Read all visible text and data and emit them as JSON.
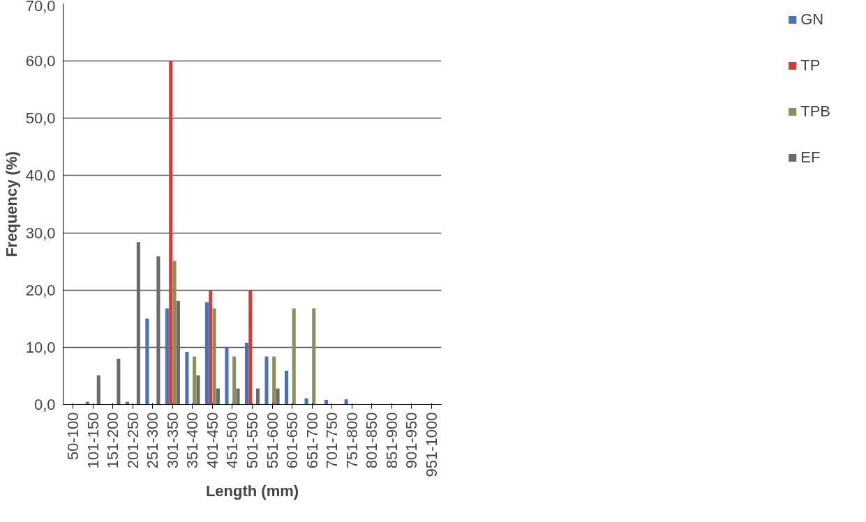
{
  "chart_data": {
    "type": "bar",
    "xlabel": "Length (mm)",
    "ylabel": "Frequency (%)",
    "categories": [
      "50-100",
      "101-150",
      "151-200",
      "201-250",
      "251-300",
      "301-350",
      "351-400",
      "401-450",
      "451-500",
      "501-550",
      "551-600",
      "601-650",
      "651-700",
      "701-750",
      "751-800",
      "801-850",
      "851-900",
      "901-950",
      "951-1000"
    ],
    "series": [
      {
        "name": "GN",
        "color": "#4a72b8",
        "values": [
          0,
          0.5,
          0,
          0.5,
          15.0,
          16.8,
          9.2,
          17.9,
          10.0,
          10.8,
          8.4,
          5.9,
          1.1,
          0.8,
          0.9,
          0,
          0,
          0,
          0
        ]
      },
      {
        "name": "TP",
        "color": "#c8413b",
        "values": [
          0,
          0,
          0,
          0,
          0,
          60.0,
          0,
          20.0,
          0,
          20.0,
          0,
          0,
          0,
          0,
          0,
          0,
          0,
          0,
          0
        ]
      },
      {
        "name": "TPB",
        "color": "#8c8f5a",
        "values": [
          0,
          0,
          0,
          0,
          0,
          25.1,
          8.4,
          16.8,
          8.4,
          0,
          8.4,
          16.8,
          16.8,
          0,
          0,
          0,
          0,
          0,
          0
        ]
      },
      {
        "name": "EF",
        "color": "#6b6b6b",
        "values": [
          0,
          5.1,
          8.0,
          28.4,
          25.9,
          18.1,
          5.1,
          2.8,
          2.8,
          2.8,
          2.8,
          0,
          0,
          0,
          0,
          0,
          0,
          0,
          0
        ]
      }
    ],
    "ylim": [
      0,
      70
    ],
    "yticks": [
      {
        "value": 0,
        "label": "0,0"
      },
      {
        "value": 10,
        "label": "10,0"
      },
      {
        "value": 20,
        "label": "20,0"
      },
      {
        "value": 30,
        "label": "30,0"
      },
      {
        "value": 40,
        "label": "40,0"
      },
      {
        "value": 50,
        "label": "50,0"
      },
      {
        "value": 60,
        "label": "60,0"
      },
      {
        "value": 70,
        "label": "70,0"
      }
    ],
    "grid": "y",
    "legend": "right"
  }
}
